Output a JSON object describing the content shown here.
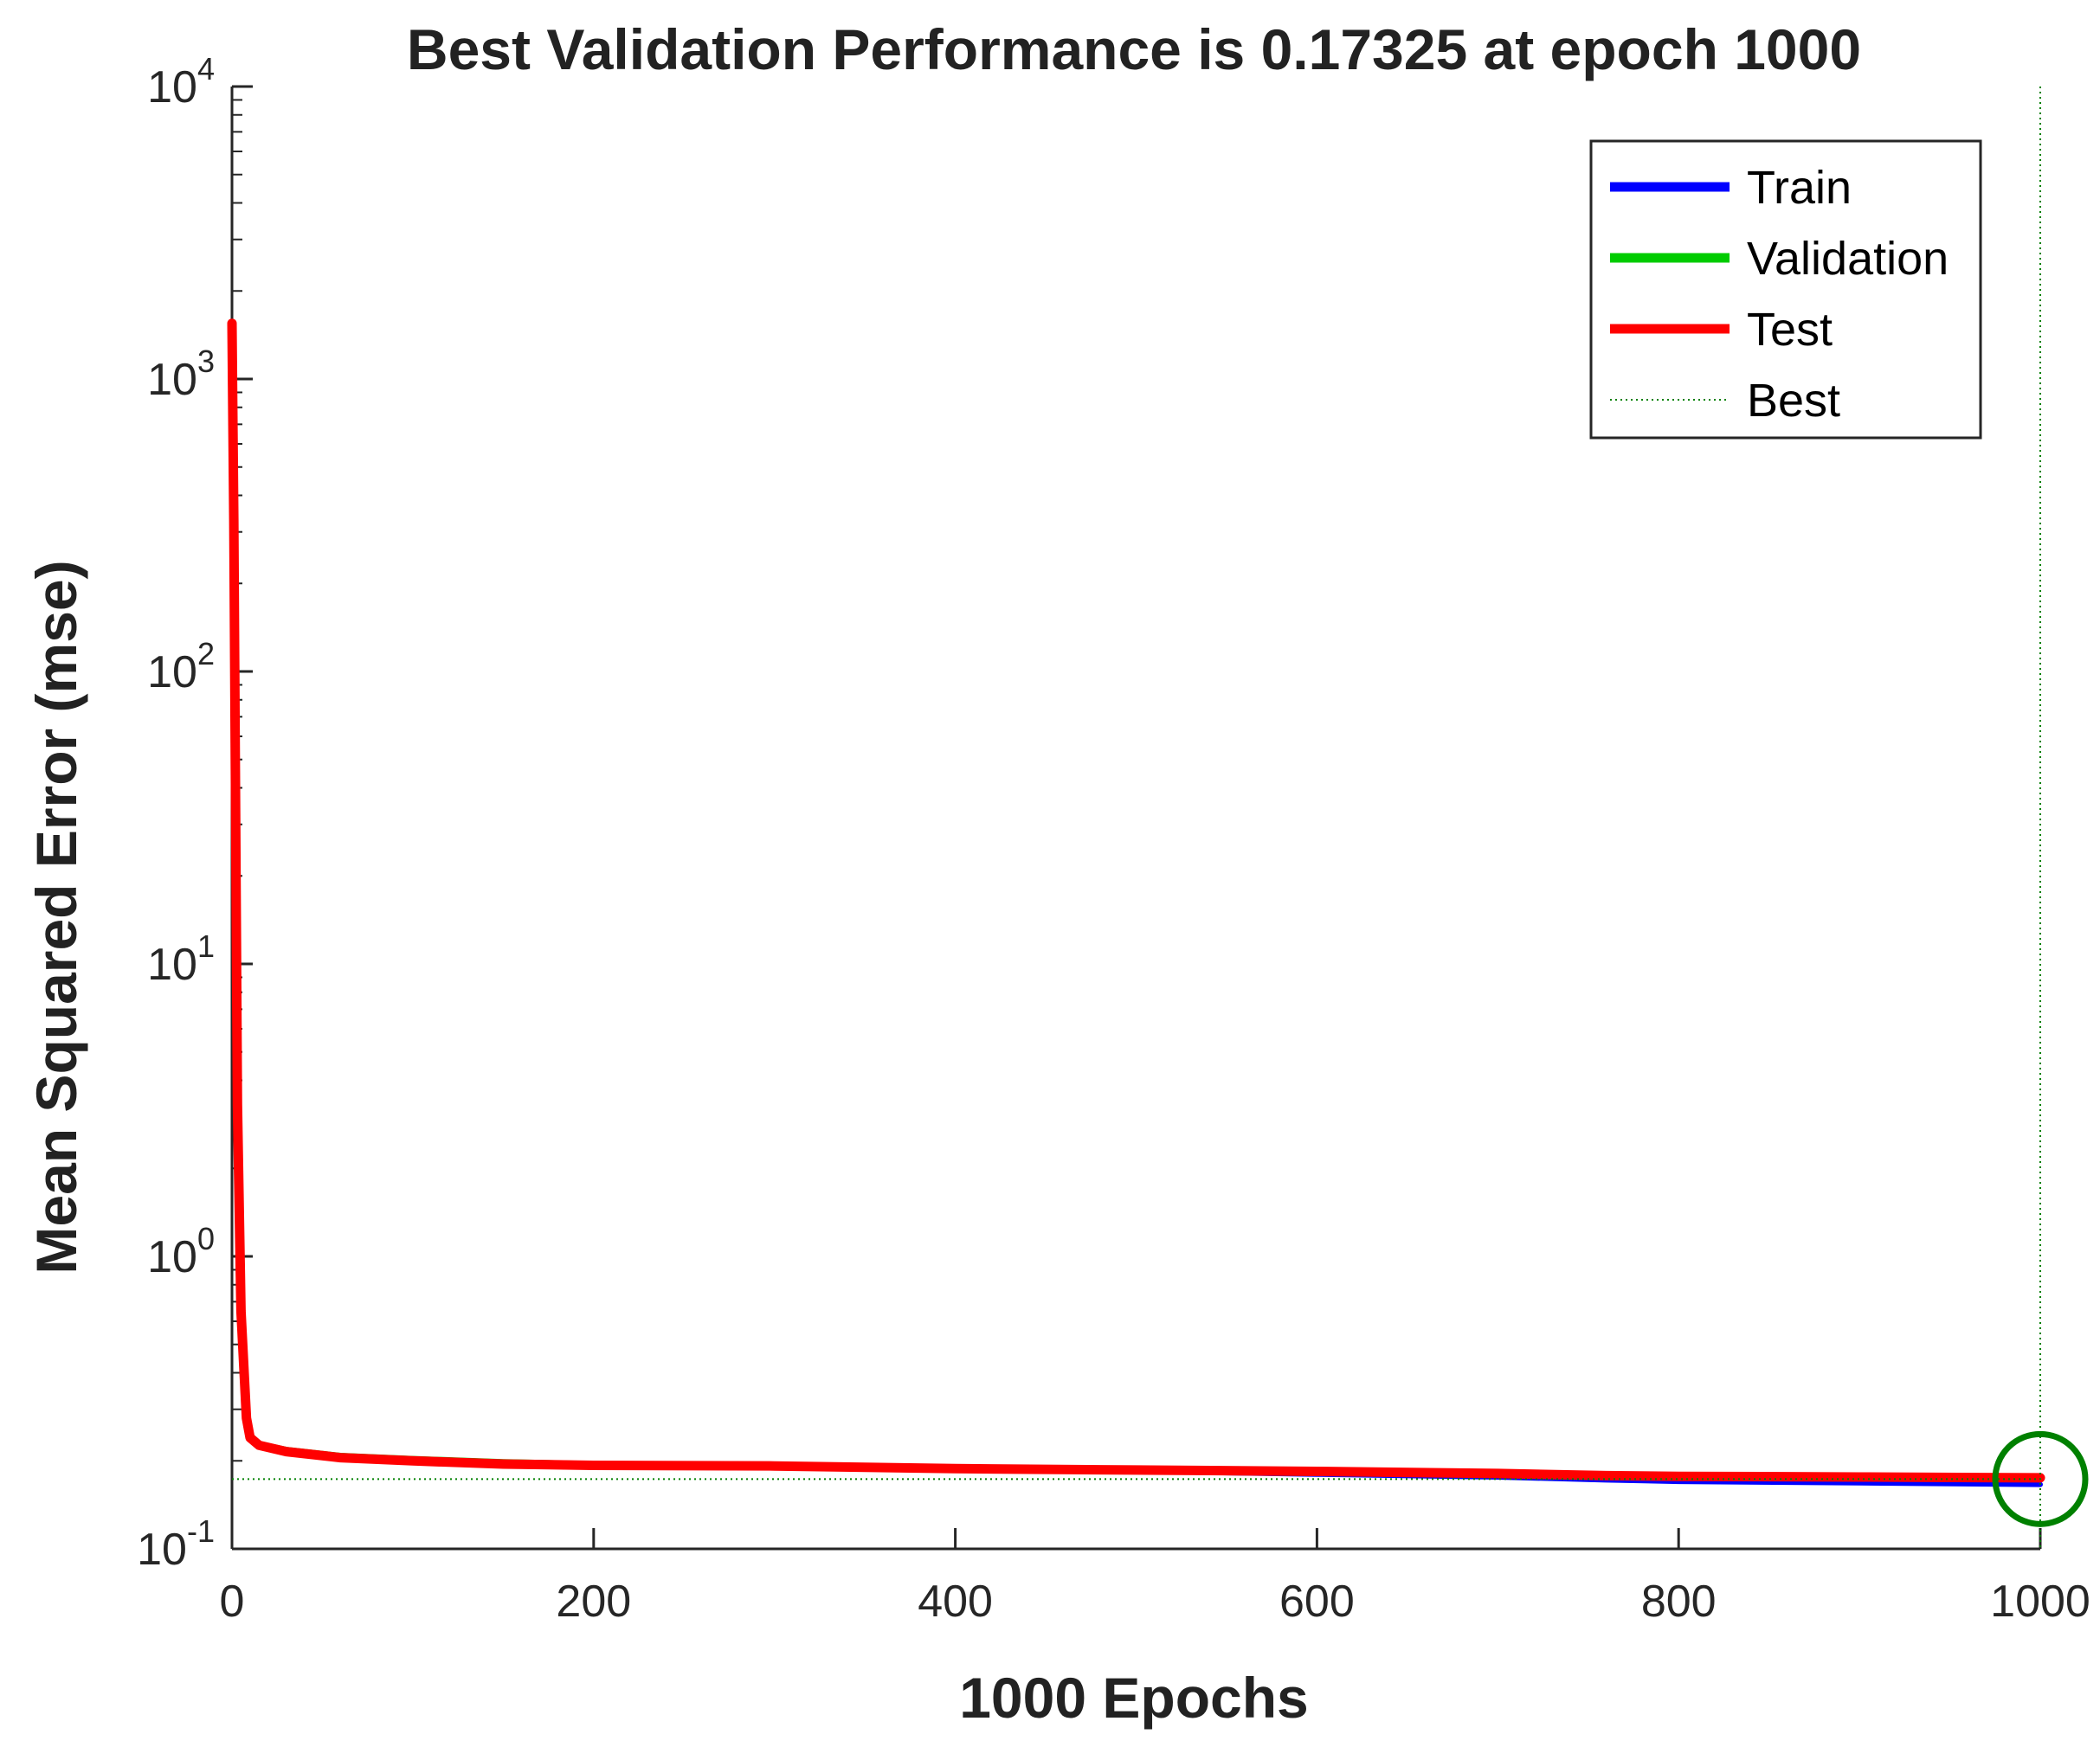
{
  "chart_data": {
    "type": "line",
    "title": "Best Validation Performance is 0.17325 at epoch 1000",
    "xlabel": "1000 Epochs",
    "ylabel": "Mean Squared Error  (mse)",
    "xlim": [
      0,
      1000
    ],
    "ylim": [
      0.1,
      10000
    ],
    "yscale": "log",
    "x_ticks": [
      "0",
      "200",
      "400",
      "600",
      "800",
      "1000"
    ],
    "y_ticks": [
      {
        "base": "10",
        "exp": "-1"
      },
      {
        "base": "10",
        "exp": "0"
      },
      {
        "base": "10",
        "exp": "1"
      },
      {
        "base": "10",
        "exp": "2"
      },
      {
        "base": "10",
        "exp": "3"
      },
      {
        "base": "10",
        "exp": "4"
      }
    ],
    "legend_position": "top-right",
    "series": [
      {
        "name": "Train",
        "color": "#0000ff",
        "x": [
          0,
          1,
          2,
          3,
          5,
          8,
          10,
          15,
          30,
          60,
          100,
          150,
          200,
          300,
          400,
          500,
          600,
          700,
          760,
          800,
          900,
          1000
        ],
        "y": [
          1500,
          300,
          30,
          3,
          0.6,
          0.27,
          0.24,
          0.225,
          0.215,
          0.205,
          0.2,
          0.195,
          0.192,
          0.19,
          0.187,
          0.184,
          0.18,
          0.176,
          0.172,
          0.17,
          0.168,
          0.166
        ]
      },
      {
        "name": "Validation",
        "color": "#00cc00",
        "x": [
          0,
          1,
          2,
          3,
          5,
          8,
          10,
          15,
          30,
          60,
          100,
          150,
          200,
          300,
          400,
          500,
          600,
          700,
          760,
          800,
          900,
          1000
        ],
        "y": [
          1500,
          320,
          32,
          3.2,
          0.62,
          0.28,
          0.245,
          0.228,
          0.218,
          0.208,
          0.203,
          0.198,
          0.195,
          0.193,
          0.19,
          0.186,
          0.183,
          0.179,
          0.176,
          0.175,
          0.174,
          0.17325
        ]
      },
      {
        "name": "Test",
        "color": "#ff0000",
        "x": [
          0,
          1,
          2,
          3,
          5,
          8,
          10,
          15,
          30,
          60,
          100,
          150,
          200,
          300,
          400,
          500,
          600,
          700,
          760,
          800,
          900,
          1000
        ],
        "y": [
          1550,
          330,
          33,
          3.3,
          0.65,
          0.28,
          0.24,
          0.226,
          0.215,
          0.205,
          0.2,
          0.195,
          0.193,
          0.192,
          0.188,
          0.186,
          0.184,
          0.181,
          0.178,
          0.177,
          0.176,
          0.175
        ]
      }
    ],
    "best": {
      "name": "Best",
      "epoch": 1000,
      "value": 0.17325,
      "color": "#008000"
    }
  }
}
